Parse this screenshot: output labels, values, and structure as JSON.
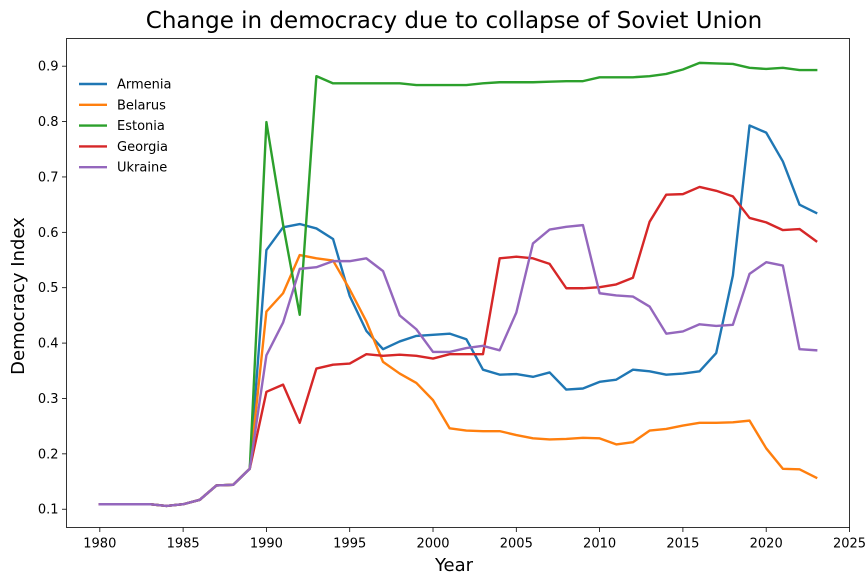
{
  "chart_data": {
    "type": "line",
    "title": "Change in democracy due to collapse of Soviet Union",
    "xlabel": "Year",
    "ylabel": "Democracy Index",
    "xlim": [
      1978,
      2025
    ],
    "ylim": [
      0.067,
      0.95
    ],
    "xticks": [
      1980,
      1985,
      1990,
      1995,
      2000,
      2005,
      2010,
      2015,
      2020,
      2025
    ],
    "yticks": [
      0.1,
      0.2,
      0.3,
      0.4,
      0.5,
      0.6,
      0.7,
      0.8,
      0.9
    ],
    "xtick_labels": [
      "1980",
      "1985",
      "1990",
      "1995",
      "2000",
      "2005",
      "2010",
      "2015",
      "2020",
      "2025"
    ],
    "ytick_labels": [
      "0.1",
      "0.2",
      "0.3",
      "0.4",
      "0.5",
      "0.6",
      "0.7",
      "0.8",
      "0.9"
    ],
    "grid": false,
    "legend_position": "top-left",
    "x": [
      1980,
      1981,
      1982,
      1983,
      1984,
      1985,
      1986,
      1987,
      1988,
      1989,
      1990,
      1991,
      1992,
      1993,
      1994,
      1995,
      1996,
      1997,
      1998,
      1999,
      2000,
      2001,
      2002,
      2003,
      2004,
      2005,
      2006,
      2007,
      2008,
      2009,
      2010,
      2011,
      2012,
      2013,
      2014,
      2015,
      2016,
      2017,
      2018,
      2019,
      2020,
      2021,
      2022,
      2023
    ],
    "series": [
      {
        "name": "Armenia",
        "color": "#1f77b4",
        "values": [
          0.109,
          0.109,
          0.109,
          0.109,
          0.106,
          0.109,
          0.117,
          0.143,
          0.144,
          0.173,
          0.568,
          0.609,
          0.615,
          0.607,
          0.588,
          0.485,
          0.422,
          0.389,
          0.403,
          0.413,
          0.415,
          0.417,
          0.407,
          0.352,
          0.343,
          0.344,
          0.339,
          0.347,
          0.316,
          0.318,
          0.33,
          0.334,
          0.352,
          0.349,
          0.343,
          0.345,
          0.349,
          0.382,
          0.522,
          0.793,
          0.78,
          0.728,
          0.65,
          0.635
        ]
      },
      {
        "name": "Belarus",
        "color": "#ff7f0e",
        "values": [
          0.109,
          0.109,
          0.109,
          0.109,
          0.106,
          0.109,
          0.117,
          0.143,
          0.144,
          0.173,
          0.457,
          0.49,
          0.559,
          0.553,
          0.549,
          0.497,
          0.439,
          0.366,
          0.345,
          0.328,
          0.297,
          0.246,
          0.242,
          0.241,
          0.241,
          0.234,
          0.228,
          0.226,
          0.227,
          0.229,
          0.228,
          0.217,
          0.221,
          0.242,
          0.245,
          0.251,
          0.256,
          0.256,
          0.257,
          0.26,
          0.21,
          0.173,
          0.172,
          0.157
        ]
      },
      {
        "name": "Estonia",
        "color": "#2ca02c",
        "values": [
          0.109,
          0.109,
          0.109,
          0.109,
          0.106,
          0.109,
          0.117,
          0.143,
          0.144,
          0.173,
          0.799,
          0.614,
          0.451,
          0.882,
          0.869,
          0.869,
          0.869,
          0.869,
          0.869,
          0.866,
          0.866,
          0.866,
          0.866,
          0.869,
          0.871,
          0.871,
          0.871,
          0.872,
          0.873,
          0.873,
          0.88,
          0.88,
          0.88,
          0.882,
          0.886,
          0.894,
          0.906,
          0.905,
          0.904,
          0.897,
          0.895,
          0.897,
          0.893,
          0.893
        ]
      },
      {
        "name": "Georgia",
        "color": "#d62728",
        "values": [
          0.109,
          0.109,
          0.109,
          0.109,
          0.106,
          0.109,
          0.117,
          0.143,
          0.144,
          0.173,
          0.312,
          0.325,
          0.256,
          0.354,
          0.361,
          0.363,
          0.38,
          0.377,
          0.379,
          0.377,
          0.372,
          0.38,
          0.38,
          0.38,
          0.553,
          0.556,
          0.553,
          0.543,
          0.499,
          0.499,
          0.501,
          0.506,
          0.518,
          0.619,
          0.668,
          0.669,
          0.682,
          0.675,
          0.665,
          0.626,
          0.618,
          0.604,
          0.606,
          0.584
        ]
      },
      {
        "name": "Ukraine",
        "color": "#9467bd",
        "values": [
          0.109,
          0.109,
          0.109,
          0.109,
          0.106,
          0.109,
          0.117,
          0.143,
          0.144,
          0.173,
          0.378,
          0.437,
          0.534,
          0.537,
          0.548,
          0.548,
          0.553,
          0.53,
          0.45,
          0.425,
          0.384,
          0.384,
          0.391,
          0.395,
          0.387,
          0.455,
          0.58,
          0.605,
          0.61,
          0.613,
          0.49,
          0.486,
          0.484,
          0.466,
          0.417,
          0.421,
          0.434,
          0.431,
          0.433,
          0.525,
          0.546,
          0.54,
          0.389,
          0.387
        ]
      }
    ]
  }
}
